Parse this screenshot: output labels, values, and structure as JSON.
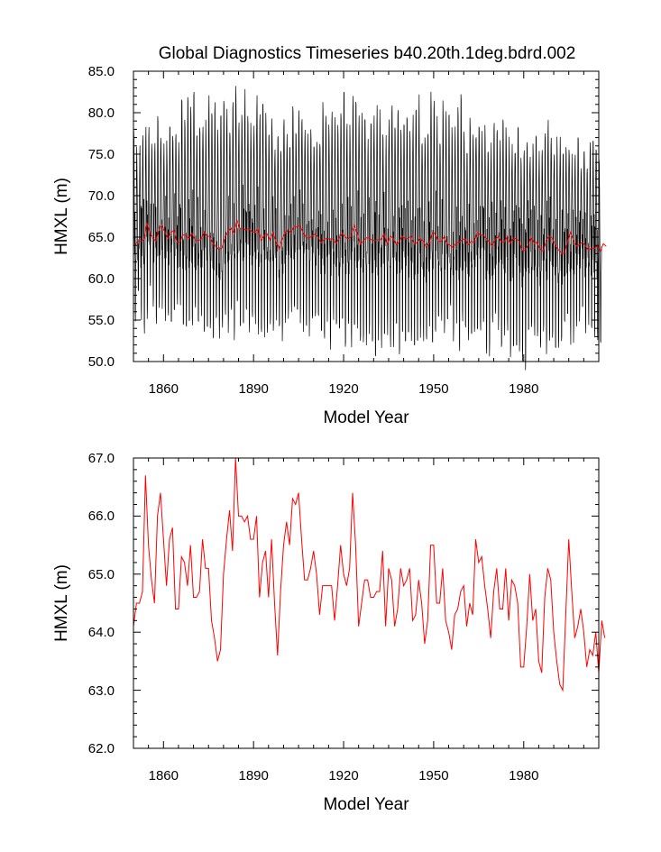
{
  "title": "Global Diagnostics Timeseries b40.20th.1deg.bdrd.002",
  "colors": {
    "monthly_line": "#000000",
    "annual_line": "#ff0000",
    "axis": "#000000"
  },
  "chart_data": [
    {
      "type": "line",
      "name": "monthly-and-annual-timeseries",
      "xlabel": "Model Year",
      "ylabel": "HMXL (m)",
      "xlim": [
        1850,
        2005
      ],
      "ylim": [
        50.0,
        85.0
      ],
      "xticks": [
        1860,
        1890,
        1920,
        1950,
        1980
      ],
      "xtick_labels": [
        "1860",
        "1890",
        "1920",
        "1950",
        "1980"
      ],
      "yticks": [
        50.0,
        55.0,
        60.0,
        65.0,
        70.0,
        75.0,
        80.0,
        85.0
      ],
      "ytick_labels": [
        "50.0",
        "55.0",
        "60.0",
        "65.0",
        "70.0",
        "75.0",
        "80.0",
        "85.0"
      ],
      "series": [
        {
          "name": "monthly",
          "color": "#000000",
          "start_year": 1850,
          "end_year": 2005,
          "winter_peaks_approx": [
            78,
            81,
            80,
            79,
            81,
            80,
            81,
            79,
            78,
            77
          ],
          "summer_troughs_approx": [
            54,
            53,
            52,
            53,
            52,
            51,
            52,
            51,
            50.5,
            52
          ]
        },
        {
          "name": "annual_mean",
          "color": "#ff0000",
          "ref": "annual"
        }
      ]
    },
    {
      "type": "line",
      "name": "annual-timeseries",
      "xlabel": "Model Year",
      "ylabel": "HMXL (m)",
      "xlim": [
        1850,
        2005
      ],
      "ylim": [
        62.0,
        67.0
      ],
      "xticks": [
        1860,
        1890,
        1920,
        1950,
        1980
      ],
      "xtick_labels": [
        "1860",
        "1890",
        "1920",
        "1950",
        "1980"
      ],
      "yticks": [
        62.0,
        63.0,
        64.0,
        65.0,
        66.0,
        67.0
      ],
      "ytick_labels": [
        "62.0",
        "63.0",
        "64.0",
        "65.0",
        "66.0",
        "67.0"
      ],
      "series": [
        {
          "name": "annual",
          "color": "#ff0000",
          "x_start": 1850,
          "x_step": 1,
          "values": [
            64.1,
            64.5,
            64.5,
            64.7,
            66.7,
            65.5,
            64.9,
            64.5,
            66.0,
            66.4,
            65.6,
            64.8,
            65.6,
            65.8,
            64.4,
            64.4,
            65.3,
            65.2,
            64.8,
            65.5,
            64.6,
            64.6,
            64.7,
            65.6,
            65.1,
            65.1,
            64.2,
            63.9,
            63.5,
            63.7,
            65.0,
            65.6,
            66.1,
            65.4,
            67.0,
            66.0,
            66.0,
            65.9,
            66.0,
            65.6,
            65.6,
            66.0,
            64.6,
            65.2,
            65.4,
            64.6,
            65.6,
            64.5,
            63.6,
            64.7,
            65.5,
            65.9,
            65.5,
            66.3,
            66.2,
            66.4,
            65.6,
            64.9,
            64.9,
            65.1,
            65.4,
            65.0,
            64.3,
            64.8,
            64.8,
            64.8,
            64.8,
            64.2,
            64.8,
            65.5,
            65.0,
            64.8,
            65.1,
            66.4,
            65.5,
            64.1,
            64.5,
            64.9,
            64.9,
            64.6,
            64.6,
            64.7,
            64.7,
            65.4,
            64.1,
            65.1,
            64.9,
            64.1,
            64.4,
            65.1,
            64.8,
            64.9,
            65.1,
            64.2,
            64.3,
            64.9,
            64.5,
            63.8,
            64.2,
            65.5,
            65.5,
            64.5,
            64.5,
            65.1,
            64.2,
            64.0,
            63.7,
            64.3,
            64.4,
            64.7,
            64.8,
            64.1,
            64.5,
            64.3,
            65.6,
            65.2,
            65.3,
            64.8,
            64.4,
            63.9,
            64.7,
            65.1,
            64.4,
            64.4,
            65.1,
            64.2,
            64.9,
            64.8,
            64.5,
            63.4,
            63.4,
            64.1,
            65.0,
            64.2,
            64.4,
            63.5,
            63.3,
            64.6,
            65.1,
            64.9,
            64.0,
            63.5,
            63.1,
            63.0,
            64.3,
            65.6,
            64.7,
            63.9,
            64.1,
            64.4,
            64.0,
            63.4,
            63.7,
            63.6,
            64.0,
            63.3,
            64.2,
            63.9
          ]
        }
      ]
    }
  ]
}
